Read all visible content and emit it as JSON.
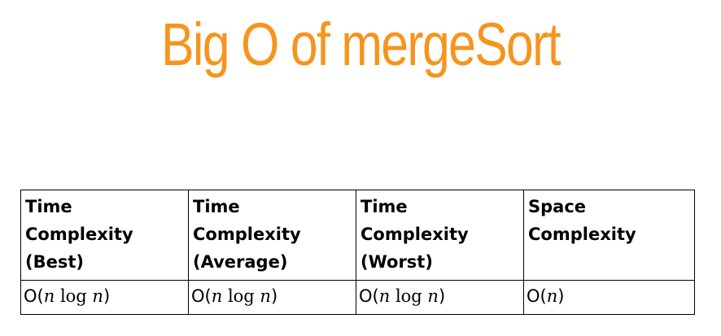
{
  "title": "Big O of mergeSort",
  "colors": {
    "title": "#f7941d",
    "text": "#000000",
    "border": "#000000"
  },
  "table": {
    "headers": [
      [
        "Time",
        "Complexity",
        "(Best)"
      ],
      [
        "Time",
        "Complexity",
        "(Average)"
      ],
      [
        "Time",
        "Complexity",
        "(Worst)"
      ],
      [
        "Space",
        "Complexity"
      ]
    ],
    "row": [
      {
        "prefix": "O(",
        "var": "n",
        "log": " log ",
        "var2": "n",
        "suffix": ")"
      },
      {
        "prefix": "O(",
        "var": "n",
        "log": " log ",
        "var2": "n",
        "suffix": ")"
      },
      {
        "prefix": "O(",
        "var": "n",
        "log": " log ",
        "var2": "n",
        "suffix": ")"
      },
      {
        "prefix": "O(",
        "var": "n",
        "suffix": ")"
      }
    ]
  }
}
